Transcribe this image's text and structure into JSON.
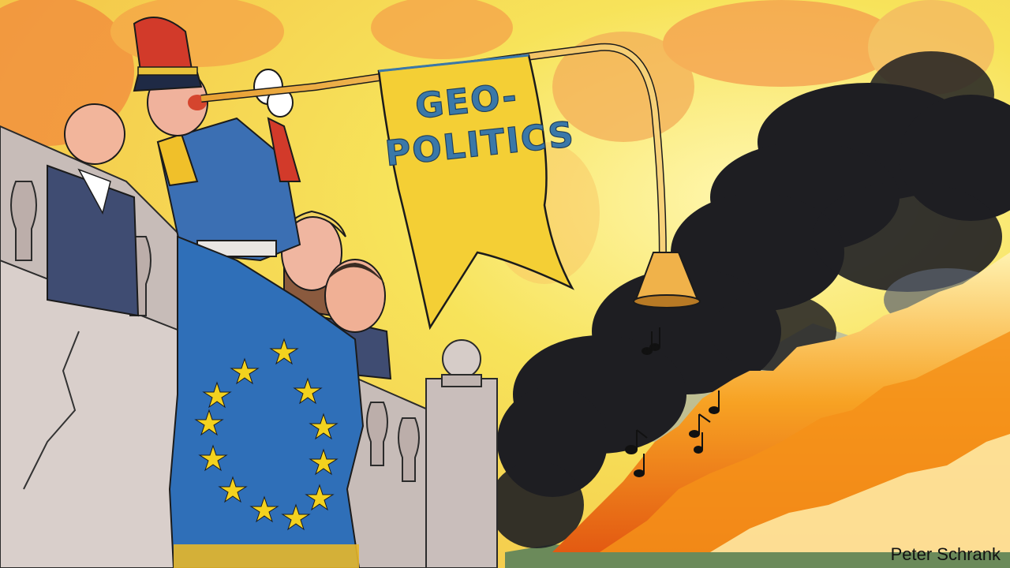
{
  "banner": {
    "line1": "GEO-",
    "line2": "POLITICS"
  },
  "credit": "Peter Schrank",
  "colors": {
    "sky": "#f8e15c",
    "sky_warm": "#f29a4a",
    "smoke": "#1f1f22",
    "fire": "#f48a1a",
    "eu_blue": "#2f6fb8",
    "eu_star": "#f3d21e",
    "banner_yellow": "#f4cf35",
    "uniform_blue": "#3b6fb3",
    "uniform_red": "#d23a2a",
    "stone": "#cfc6c3"
  },
  "icons": [
    "eu-flag-icon",
    "music-note-icon",
    "bugle-icon"
  ]
}
